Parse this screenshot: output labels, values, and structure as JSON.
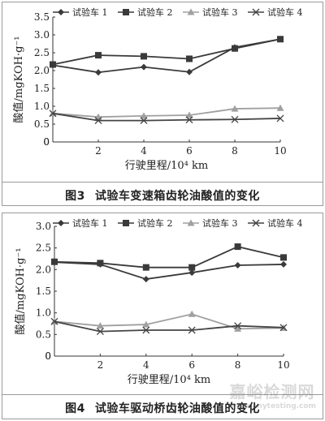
{
  "chart_data": [
    {
      "type": "line",
      "x": [
        0,
        2,
        4,
        6,
        8,
        10
      ],
      "xlim": [
        0,
        10
      ],
      "ylim": [
        0,
        3.5
      ],
      "xticks": [
        0,
        2,
        4,
        6,
        8,
        10
      ],
      "yticks": [
        0,
        0.5,
        1.0,
        1.5,
        2.0,
        2.5,
        3.0,
        3.5
      ],
      "xtick_labels": [
        "0",
        "2",
        "4",
        "6",
        "8",
        "10"
      ],
      "ytick_labels": [
        "0",
        "0.5",
        "1.0",
        "1.5",
        "2.0",
        "2.5",
        "3.0",
        "3.5"
      ],
      "xlabel": "行驶里程/10⁴ km",
      "ylabel": "酸值/mgKOH·g⁻¹",
      "legend_position": "top",
      "grid": false,
      "series": [
        {
          "name": "试验车 1",
          "marker": "diamond",
          "color": "#3a3a3a",
          "values": [
            2.15,
            1.95,
            2.1,
            1.96,
            2.65,
            2.88
          ]
        },
        {
          "name": "试验车 2",
          "marker": "square",
          "color": "#3a3a3a",
          "values": [
            2.17,
            2.43,
            2.4,
            2.33,
            2.62,
            2.88
          ]
        },
        {
          "name": "试验车 3",
          "marker": "triangle",
          "color": "#a0a0a0",
          "values": [
            0.8,
            0.7,
            0.73,
            0.75,
            0.93,
            0.95
          ]
        },
        {
          "name": "试验车 4",
          "marker": "x",
          "color": "#444444",
          "values": [
            0.8,
            0.6,
            0.6,
            0.62,
            0.63,
            0.66
          ]
        }
      ],
      "caption_num": "图3",
      "caption_text": "试验车变速箱齿轮油酸值的变化"
    },
    {
      "type": "line",
      "x": [
        0,
        2,
        4,
        6,
        8,
        10
      ],
      "xlim": [
        0,
        10
      ],
      "ylim": [
        0,
        3.0
      ],
      "xticks": [
        0,
        2,
        4,
        6,
        8,
        10
      ],
      "yticks": [
        0,
        0.5,
        1.0,
        1.5,
        2.0,
        2.5,
        3.0
      ],
      "xtick_labels": [
        "0",
        "2",
        "4",
        "6",
        "8",
        "10"
      ],
      "ytick_labels": [
        "0",
        "0.5",
        "1.0",
        "1.5",
        "2.0",
        "2.5",
        "3.0"
      ],
      "xlabel": "行驶里程/10⁴ km",
      "ylabel": "酸值/mgKOH·g⁻¹",
      "legend_position": "top",
      "grid": false,
      "series": [
        {
          "name": "试验车 1",
          "marker": "diamond",
          "color": "#3a3a3a",
          "values": [
            2.17,
            2.12,
            1.78,
            1.93,
            2.1,
            2.12
          ]
        },
        {
          "name": "试验车 2",
          "marker": "square",
          "color": "#3a3a3a",
          "values": [
            2.18,
            2.15,
            2.05,
            2.05,
            2.53,
            2.28
          ]
        },
        {
          "name": "试验车 3",
          "marker": "triangle",
          "color": "#a0a0a0",
          "values": [
            0.8,
            0.7,
            0.73,
            0.97,
            0.63,
            0.65
          ]
        },
        {
          "name": "试验车 4",
          "marker": "x",
          "color": "#444444",
          "values": [
            0.8,
            0.57,
            0.6,
            0.6,
            0.7,
            0.66
          ]
        }
      ],
      "caption_num": "图4",
      "caption_text": "试验车驱动桥齿轮油酸值的变化"
    }
  ],
  "watermark": {
    "text": "嘉峪检测网",
    "url": "www.anytesting.com"
  }
}
